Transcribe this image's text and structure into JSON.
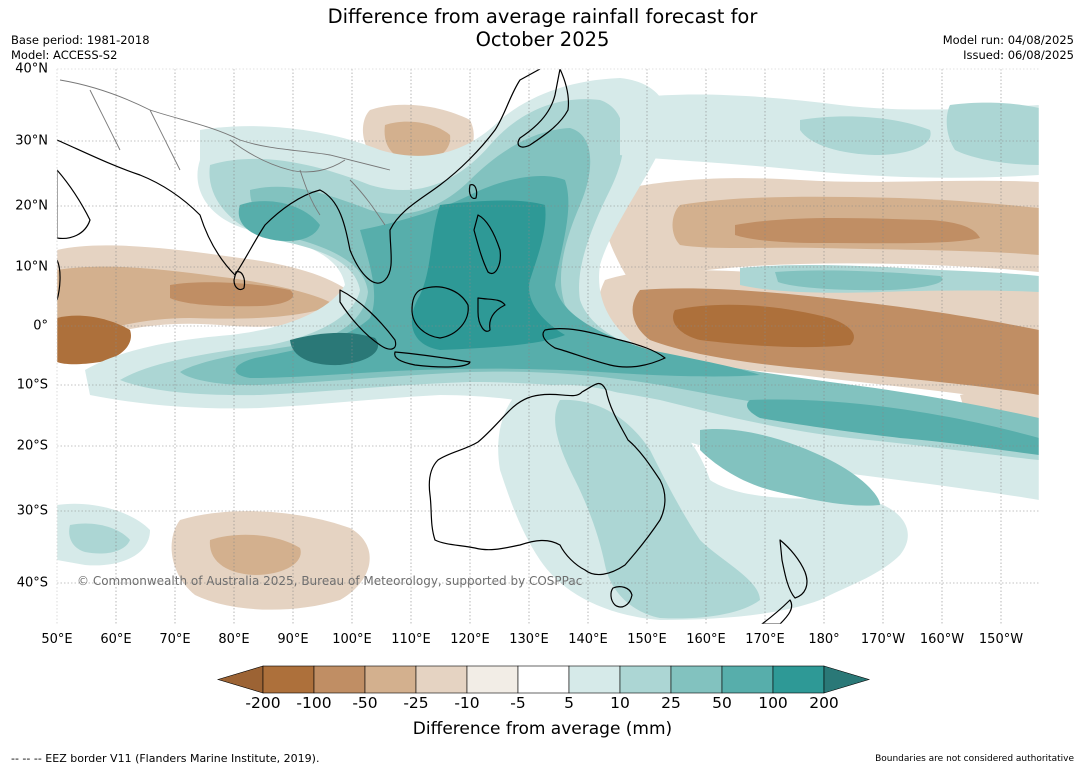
{
  "title_line1": "Difference from average rainfall forecast for",
  "title_line2": "October 2025",
  "base_period": "Base period: 1981-2018",
  "model": "Model: ACCESS-S2",
  "model_run": "Model run: 04/08/2025",
  "issued": "Issued: 06/08/2025",
  "copyright": "© Commonwealth of Australia 2025, Bureau of Meteorology, supported by COSPPac",
  "lat_labels": [
    "40°N",
    "30°N",
    "20°N",
    "10°N",
    "0°",
    "10°S",
    "20°S",
    "30°S",
    "40°S"
  ],
  "lon_labels": [
    "50°E",
    "60°E",
    "70°E",
    "80°E",
    "90°E",
    "100°E",
    "110°E",
    "120°E",
    "130°E",
    "140°E",
    "150°E",
    "160°E",
    "170°E",
    "180°",
    "170°W",
    "160°W",
    "150°W"
  ],
  "colorbar": {
    "title": "Difference from average (mm)",
    "ticks": [
      "-200",
      "-100",
      "-50",
      "-25",
      "-10",
      "-5",
      "5",
      "10",
      "25",
      "50",
      "100",
      "200"
    ],
    "colors": [
      "#9c6334",
      "#ad703b",
      "#c08e64",
      "#d3b08e",
      "#e5d3c2",
      "#f2ede6",
      "#ffffff",
      "#d6eae9",
      "#acd6d4",
      "#82c2bf",
      "#57aeab",
      "#2e9996",
      "#2a7877"
    ]
  },
  "footer_left": "--  --  -- EEZ border V11 (Flanders Marine Institute, 2019).",
  "footer_right": "Boundaries are not considered authoritative"
}
